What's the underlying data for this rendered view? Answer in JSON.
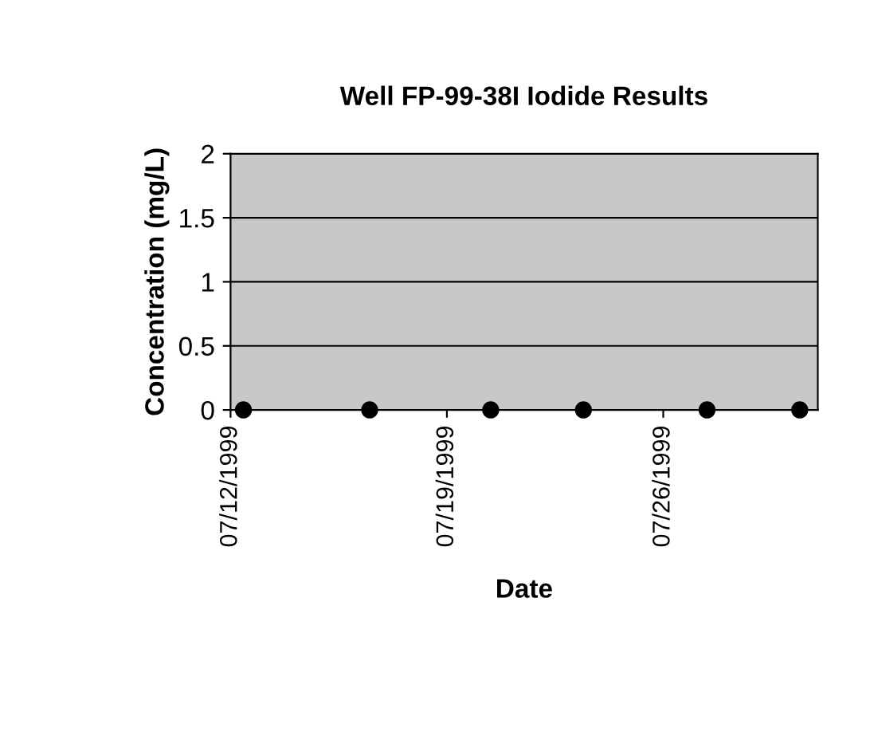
{
  "chart_data": {
    "type": "scatter",
    "title": "Well FP-99-38I Iodide Results",
    "xlabel": "Date",
    "ylabel": "Concentration (mg/L)",
    "x": [
      "1999-07-12T10:00",
      "1999-07-16T12:00",
      "1999-07-20T10:00",
      "1999-07-23T10:00",
      "1999-07-27T10:00",
      "1999-07-30T10:00"
    ],
    "series": [
      {
        "color": "#000000",
        "values": [
          0,
          0,
          0,
          0,
          0,
          0
        ]
      }
    ],
    "xlim": [
      "1999-07-12",
      "1999-07-31"
    ],
    "xticks": [
      {
        "value": "1999-07-12",
        "label": "07/12/1999"
      },
      {
        "value": "1999-07-19",
        "label": "07/19/1999"
      },
      {
        "value": "1999-07-26",
        "label": "07/26/1999"
      }
    ],
    "ylim": [
      0,
      2
    ],
    "yticks": [
      0,
      0.5,
      1,
      1.5,
      2
    ],
    "grid": "y",
    "marker": "circle",
    "legend": false
  }
}
